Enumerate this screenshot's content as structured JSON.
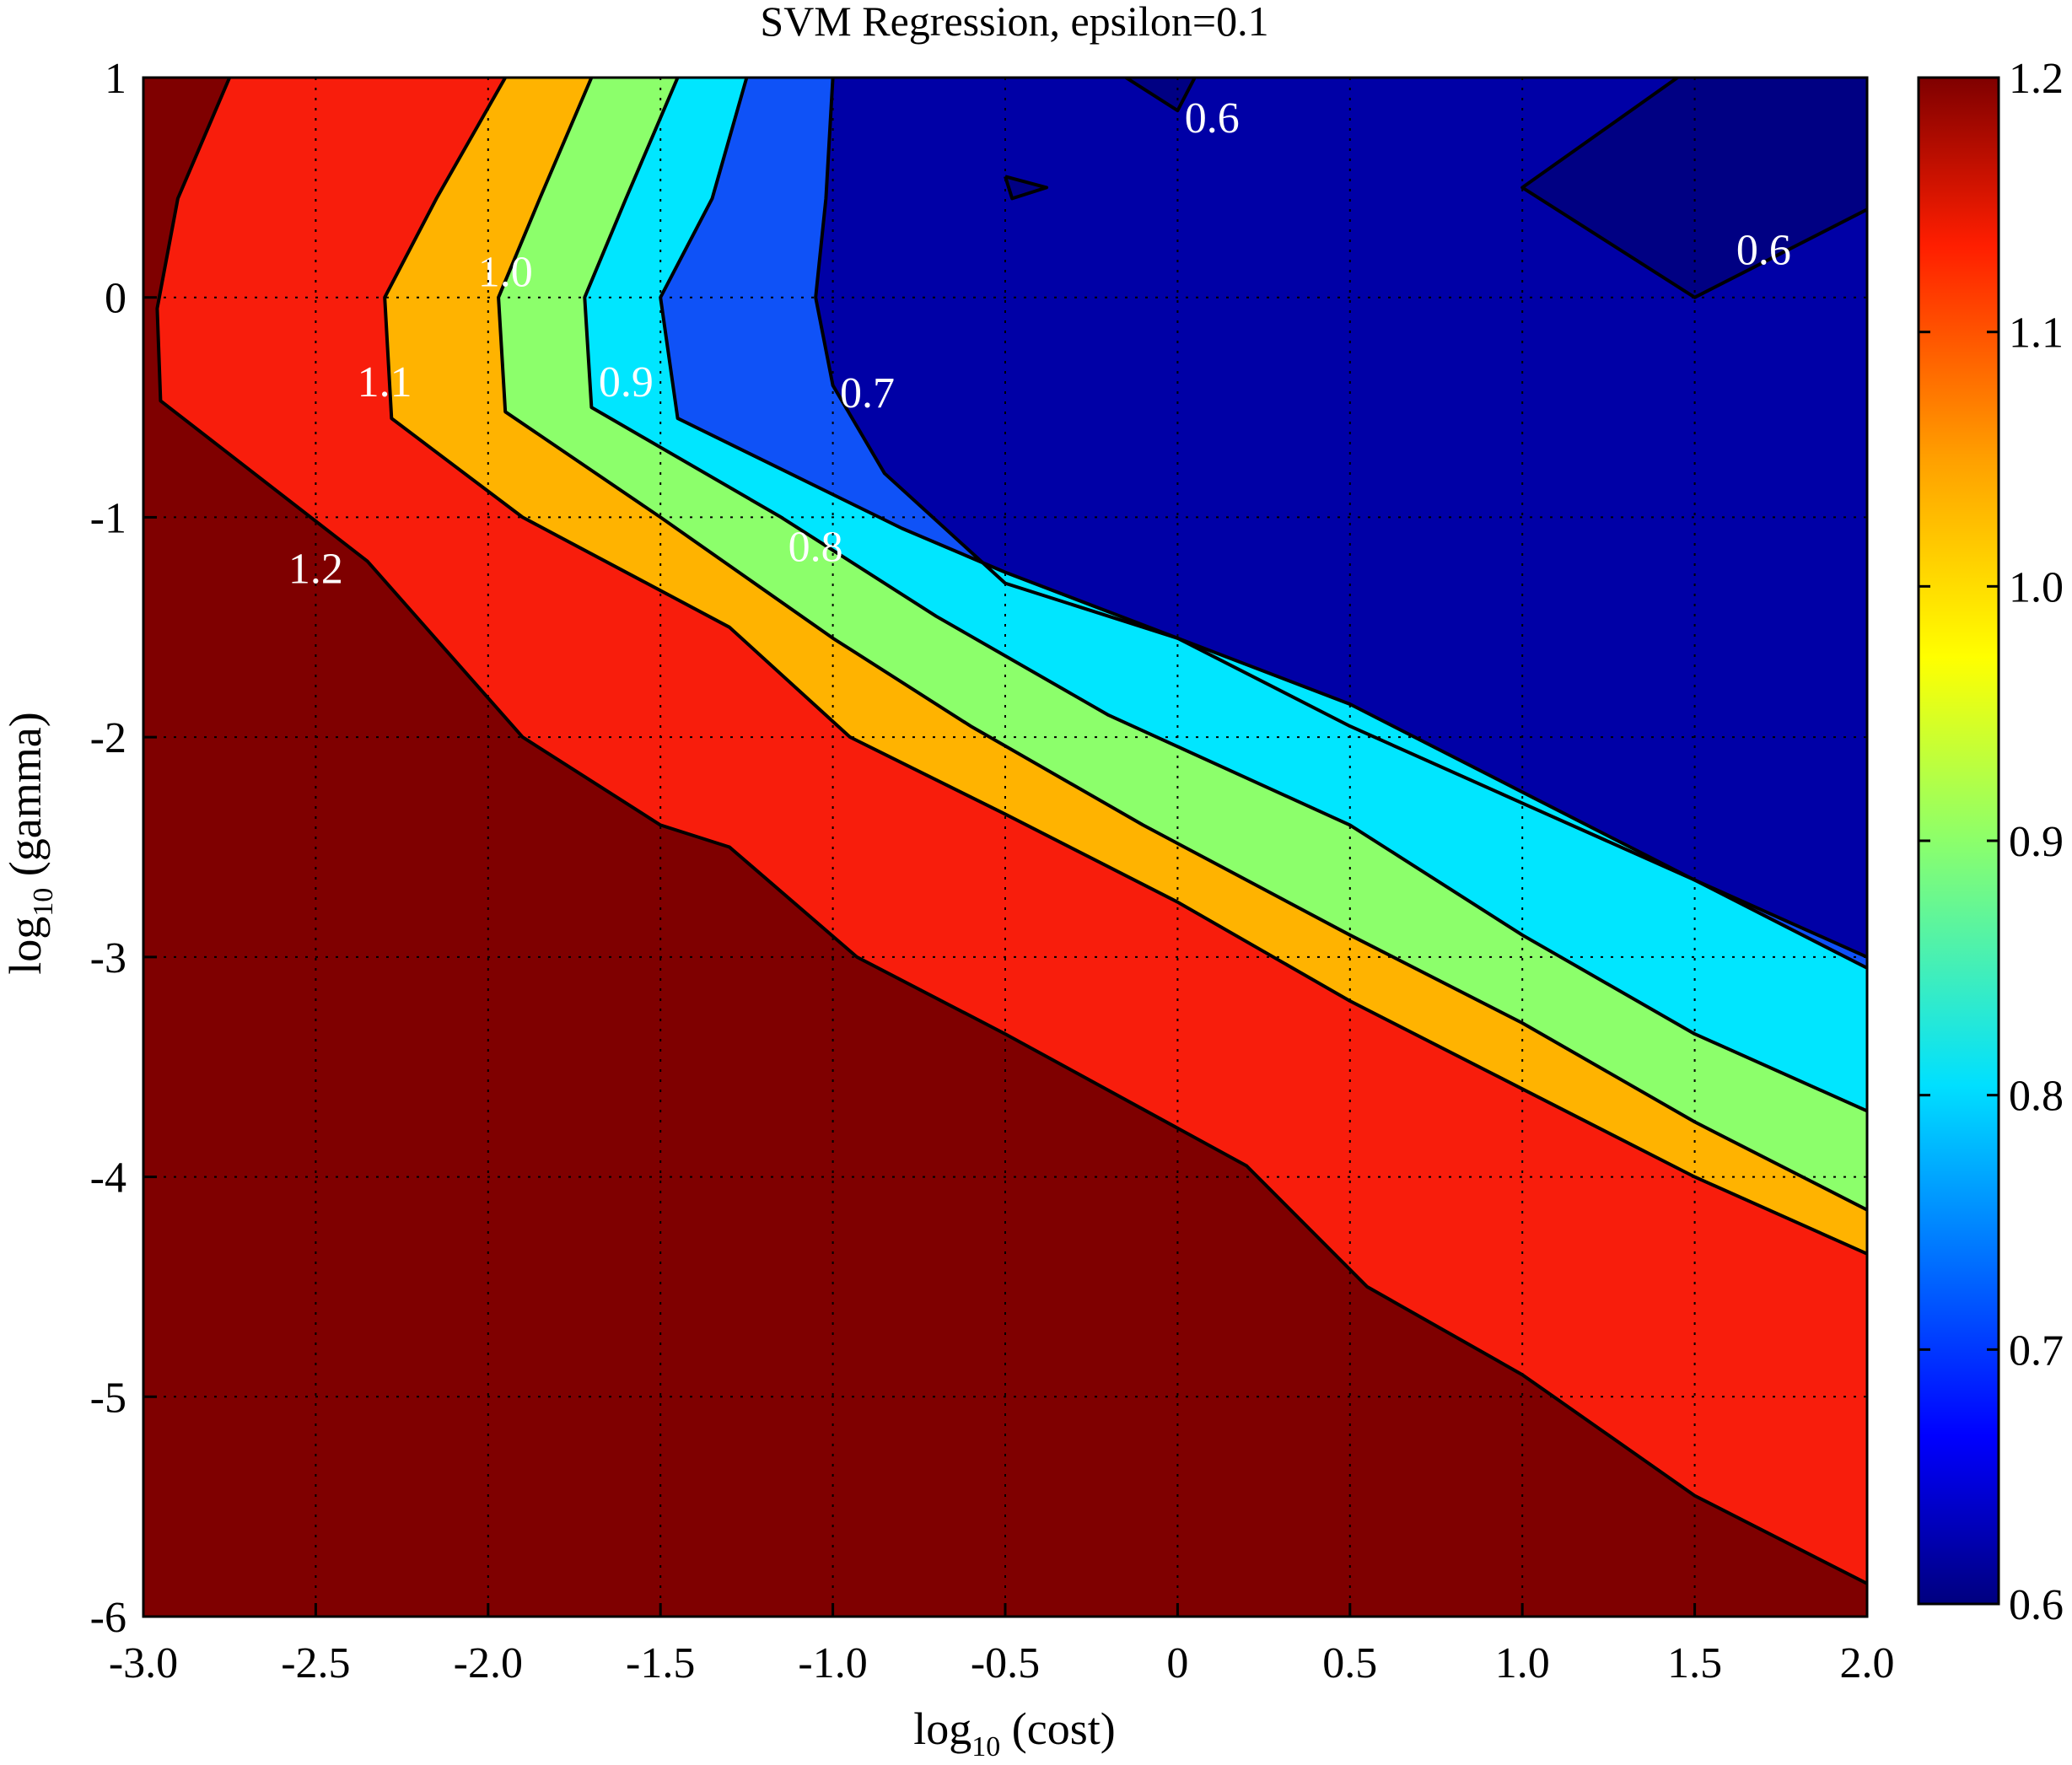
{
  "chart_data": {
    "type": "filled-contour",
    "title": "SVM Regression, epsilon=0.1",
    "xlabel": {
      "base": "log",
      "subscript": "10",
      "rest": " (cost)"
    },
    "ylabel": {
      "base": "log",
      "subscript": "10",
      "rest": " (gamma)"
    },
    "xlim": [
      -3.0,
      2.0
    ],
    "ylim": [
      -6,
      1
    ],
    "x_ticks": [
      "-3.0",
      "-2.5",
      "-2.0",
      "-1.5",
      "-1.0",
      "-0.5",
      "0",
      "0.5",
      "1.0",
      "1.5",
      "2.0"
    ],
    "y_ticks": [
      "1",
      "0",
      "-1",
      "-2",
      "-3",
      "-4",
      "-5",
      "-6"
    ],
    "grid": true,
    "colormap": "jet",
    "colorbar": {
      "range": [
        0.6,
        1.2
      ],
      "ticks": [
        "1.2",
        "1.1",
        "1.0",
        "0.9",
        "0.8",
        "0.7",
        "0.6"
      ]
    },
    "levels": [
      0.6,
      0.7,
      0.8,
      0.9,
      1.0,
      1.1,
      1.2
    ],
    "bands": [
      {
        "range": [
          1.2,
          1.3
        ],
        "color": "#7f0000"
      },
      {
        "range": [
          1.1,
          1.2
        ],
        "color": "#f81d0c"
      },
      {
        "range": [
          1.0,
          1.1
        ],
        "color": "#ffb300"
      },
      {
        "range": [
          0.9,
          1.0
        ],
        "color": "#8cff6b"
      },
      {
        "range": [
          0.8,
          0.9
        ],
        "color": "#00e6ff"
      },
      {
        "range": [
          0.7,
          0.8
        ],
        "color": "#0f52f7"
      },
      {
        "range": [
          0.6,
          0.7
        ],
        "color": "#0000a6"
      },
      {
        "range": [
          0.5,
          0.6
        ],
        "color": "#000083"
      }
    ],
    "contour_lines": [
      {
        "level": 1.2,
        "points": [
          [
            -2.75,
            1.0
          ],
          [
            -2.9,
            0.45
          ],
          [
            -2.96,
            -0.05
          ],
          [
            -2.95,
            -0.47
          ],
          [
            -2.35,
            -1.2
          ],
          [
            -1.9,
            -2.0
          ],
          [
            -1.5,
            -2.4
          ],
          [
            -1.3,
            -2.5
          ],
          [
            -0.93,
            -3.0
          ],
          [
            -0.5,
            -3.35
          ],
          [
            0.2,
            -3.95
          ],
          [
            0.55,
            -4.5
          ],
          [
            1.0,
            -4.9
          ],
          [
            1.5,
            -5.45
          ],
          [
            2.0,
            -5.85
          ]
        ]
      },
      {
        "level": 1.1,
        "points": [
          [
            -1.95,
            1.0
          ],
          [
            -2.15,
            0.45
          ],
          [
            -2.3,
            0.0
          ],
          [
            -2.28,
            -0.55
          ],
          [
            -1.9,
            -1.0
          ],
          [
            -1.3,
            -1.5
          ],
          [
            -0.95,
            -2.0
          ],
          [
            -0.5,
            -2.35
          ],
          [
            0.0,
            -2.75
          ],
          [
            0.5,
            -3.2
          ],
          [
            1.0,
            -3.6
          ],
          [
            1.5,
            -4.0
          ],
          [
            2.0,
            -4.35
          ]
        ]
      },
      {
        "level": 1.0,
        "points": [
          [
            -1.7,
            1.0
          ],
          [
            -1.85,
            0.45
          ],
          [
            -1.97,
            0.0
          ],
          [
            -1.95,
            -0.52
          ],
          [
            -1.5,
            -1.0
          ],
          [
            -1.0,
            -1.55
          ],
          [
            -0.6,
            -1.95
          ],
          [
            -0.1,
            -2.4
          ],
          [
            0.5,
            -2.9
          ],
          [
            1.0,
            -3.3
          ],
          [
            1.5,
            -3.75
          ],
          [
            2.0,
            -4.15
          ]
        ]
      },
      {
        "level": 0.9,
        "points": [
          [
            -1.45,
            1.0
          ],
          [
            -1.6,
            0.45
          ],
          [
            -1.72,
            0.0
          ],
          [
            -1.7,
            -0.5
          ],
          [
            -1.15,
            -1.0
          ],
          [
            -0.7,
            -1.45
          ],
          [
            -0.2,
            -1.9
          ],
          [
            0.5,
            -2.4
          ],
          [
            1.0,
            -2.9
          ],
          [
            1.5,
            -3.35
          ],
          [
            2.0,
            -3.7
          ]
        ]
      },
      {
        "level": 0.8,
        "points": [
          [
            -1.25,
            1.0
          ],
          [
            -1.35,
            0.45
          ],
          [
            -1.5,
            0.0
          ],
          [
            -1.45,
            -0.55
          ],
          [
            -0.8,
            -1.05
          ],
          [
            -0.5,
            -1.25
          ],
          [
            0.0,
            -1.55
          ],
          [
            0.5,
            -1.85
          ],
          [
            1.0,
            -2.25
          ],
          [
            1.5,
            -2.65
          ],
          [
            2.0,
            -3.05
          ]
        ]
      },
      {
        "level": 0.7,
        "points": [
          [
            -1.0,
            1.0
          ],
          [
            -1.02,
            0.45
          ],
          [
            -1.05,
            0.0
          ],
          [
            -1.0,
            -0.4
          ],
          [
            -0.85,
            -0.8
          ],
          [
            -0.5,
            -1.3
          ],
          [
            0.0,
            -1.55
          ],
          [
            0.5,
            -1.95
          ],
          [
            1.0,
            -2.3
          ],
          [
            1.5,
            -2.65
          ],
          [
            2.0,
            -3.0
          ]
        ]
      },
      {
        "level": 0.6,
        "points": [
          [
            -0.15,
            1.0
          ],
          [
            0.0,
            0.85
          ],
          [
            0.05,
            1.0
          ]
        ]
      },
      {
        "level": 0.6,
        "points": [
          [
            -0.5,
            0.55
          ],
          [
            -0.38,
            0.5
          ],
          [
            -0.48,
            0.45
          ],
          [
            -0.5,
            0.55
          ]
        ]
      },
      {
        "level": 0.6,
        "points": [
          [
            1.45,
            1.0
          ],
          [
            1.0,
            0.5
          ],
          [
            1.5,
            0.0
          ],
          [
            2.0,
            0.4
          ]
        ]
      }
    ],
    "contour_labels": [
      {
        "text": "1.2",
        "x": -2.5,
        "y": -1.3
      },
      {
        "text": "1.1",
        "x": -2.3,
        "y": -0.45
      },
      {
        "text": "1.0",
        "x": -1.95,
        "y": 0.05
      },
      {
        "text": "0.9",
        "x": -1.6,
        "y": -0.45
      },
      {
        "text": "0.8",
        "x": -1.05,
        "y": -1.2
      },
      {
        "text": "0.7",
        "x": -0.9,
        "y": -0.5
      },
      {
        "text": "0.6",
        "x": 0.1,
        "y": 0.75
      },
      {
        "text": "0.6",
        "x": 1.7,
        "y": 0.15
      }
    ]
  }
}
